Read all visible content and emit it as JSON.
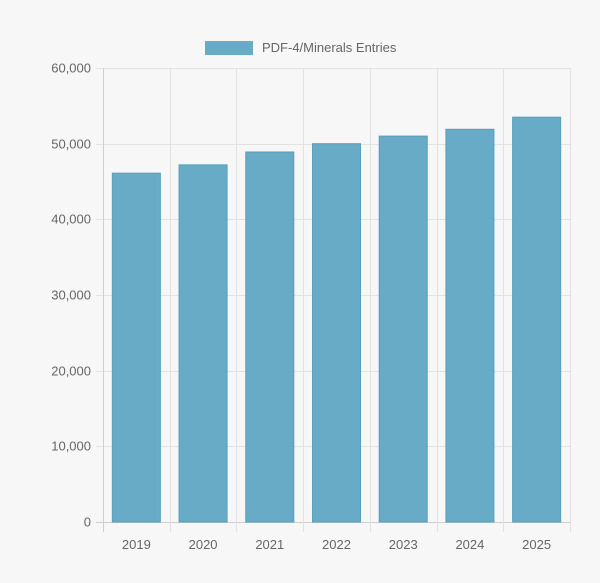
{
  "chart_data": {
    "type": "bar",
    "categories": [
      "2019",
      "2020",
      "2021",
      "2022",
      "2023",
      "2024",
      "2025"
    ],
    "series": [
      {
        "name": "PDF-4/Minerals Entries",
        "values": [
          46100,
          47200,
          48900,
          50000,
          51000,
          51900,
          53500
        ]
      }
    ],
    "ylim": [
      0,
      60000
    ],
    "yticks": [
      "0",
      "10,000",
      "20,000",
      "30,000",
      "40,000",
      "50,000",
      "60,000"
    ],
    "grid": true,
    "legend_position": "top-center",
    "colors": {
      "bar": "#67abc6",
      "bar_border": "#5a9fbb",
      "grid": "#e2e2e2",
      "text": "#666666",
      "background": "#f7f7f7"
    }
  }
}
